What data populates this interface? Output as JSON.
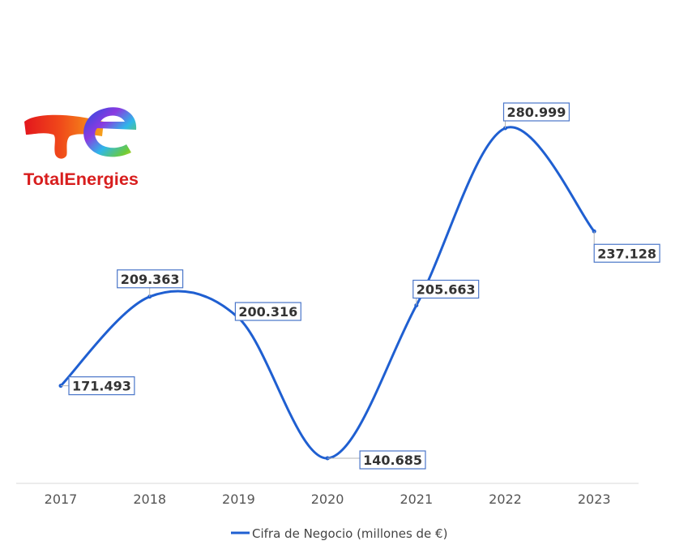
{
  "logo": {
    "name": "TotalEnergies"
  },
  "chart_data": {
    "type": "line",
    "categories": [
      "2017",
      "2018",
      "2019",
      "2020",
      "2021",
      "2022",
      "2023"
    ],
    "series": [
      {
        "name": "Cifra de Negocio (millones de €)",
        "values": [
          171.493,
          209.363,
          200.316,
          140.685,
          205.663,
          280.999,
          237.128
        ],
        "labels": [
          "171.493",
          "209.363",
          "200.316",
          "140.685",
          "205.663",
          "280.999",
          "237.128"
        ]
      }
    ],
    "smooth": true,
    "grid": false,
    "legend": "bottom",
    "colors": {
      "series": "#1f5fd1",
      "label_border": "#4a76c9",
      "brand": "#d81e1e"
    }
  }
}
